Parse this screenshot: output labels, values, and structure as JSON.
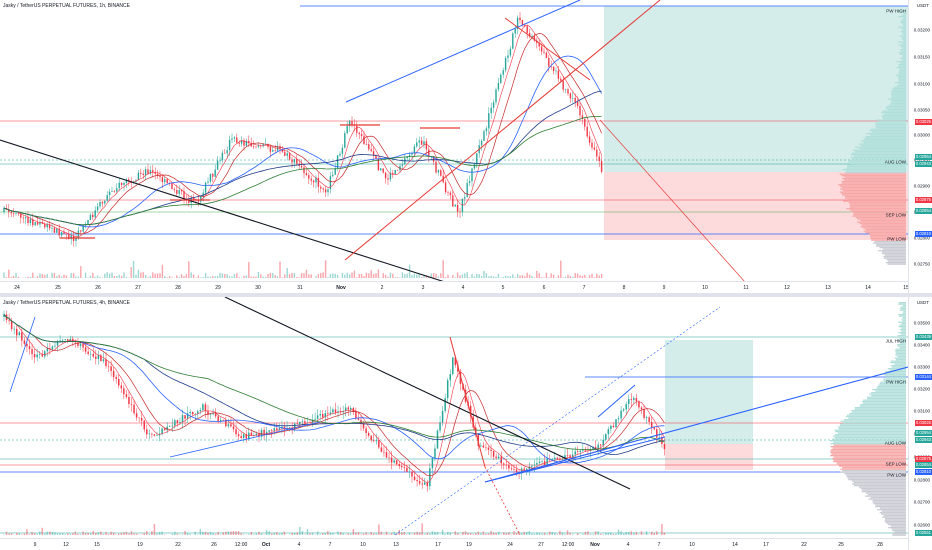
{
  "top_pane": {
    "title": "Jasky / TetherUS PERPETUAL FUTURES, 1h, BINANCE",
    "unit": "USDT",
    "y_ticks": [
      "0.03200",
      "0.03150",
      "0.03100",
      "0.03050",
      "0.03000",
      "0.02950",
      "0.02900",
      "0.02850",
      "0.02800",
      "0.02750"
    ],
    "badges": [
      {
        "text": "0.03025",
        "color": "#f23645"
      },
      {
        "text": "0.02954",
        "color": "#26a69a"
      },
      {
        "text": "0.02943",
        "color": "#26a69a"
      },
      {
        "text": "0.02875",
        "color": "#f23645"
      },
      {
        "text": "0.02854",
        "color": "#26a69a"
      },
      {
        "text": "0.02810",
        "color": "#2962ff"
      }
    ],
    "levels": [
      "PW HIGH",
      "AUG LOW",
      "SEP LOW",
      "PW LOW"
    ],
    "x_labels": [
      "24",
      "25",
      "26",
      "27",
      "28",
      "29",
      "30",
      "31",
      "Nov",
      "2",
      "3",
      "4",
      "5",
      "6",
      "7",
      "8",
      "9",
      "10",
      "11",
      "12",
      "13",
      "14",
      "15"
    ]
  },
  "bottom_pane": {
    "title": "Jasky / TetherUS PERPETUAL FUTURES, 4h, BINANCE",
    "unit": "USDT",
    "y_ticks": [
      "0.03500",
      "0.03400",
      "0.03300",
      "0.03200",
      "0.03100",
      "0.03000",
      "0.02900",
      "0.02800",
      "0.02700",
      "0.02600"
    ],
    "badges": [
      {
        "text": "0.03439",
        "color": "#26a69a"
      },
      {
        "text": "0.03144",
        "color": "#2962ff"
      },
      {
        "text": "0.03025",
        "color": "#f23645"
      },
      {
        "text": "0.02954",
        "color": "#26a69a"
      },
      {
        "text": "0.02943",
        "color": "#26a69a"
      },
      {
        "text": "0.02875",
        "color": "#f23645"
      },
      {
        "text": "0.02854",
        "color": "#26a69a"
      },
      {
        "text": "0.02810",
        "color": "#2962ff"
      },
      {
        "text": "0.02551",
        "color": "#26a69a"
      }
    ],
    "levels": [
      "JUL HIGH",
      "PW HIGH",
      "AUG LOW",
      "SEP LOW",
      "PW LOW"
    ],
    "x_labels": [
      "9",
      "12",
      "15",
      "19",
      "22",
      "26",
      "12:00",
      "Oct",
      "4",
      "7",
      "10",
      "13",
      "17",
      "19",
      "24",
      "27",
      "12:00",
      "Nov",
      "4",
      "7",
      "10",
      "14",
      "17",
      "22",
      "25",
      "28"
    ]
  }
}
